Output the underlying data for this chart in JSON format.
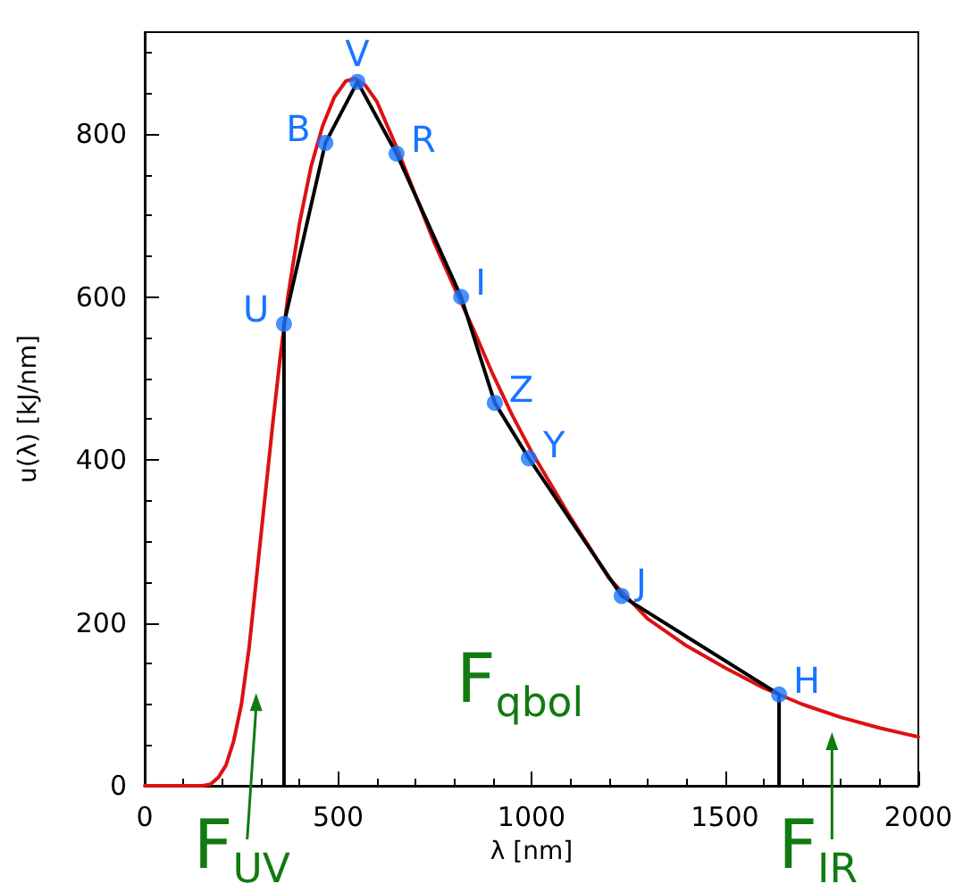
{
  "chart_data": {
    "type": "line",
    "xlabel": "λ [nm]",
    "ylabel": "u(λ) [kJ/nm]",
    "xlim": [
      0,
      2000
    ],
    "xticks": [
      0,
      500,
      1000,
      1500,
      2000
    ],
    "ylim": [
      0,
      925
    ],
    "yticks": [
      0,
      200,
      400,
      600,
      800
    ],
    "series": [
      {
        "color": "#dd1111",
        "marker": "none",
        "x": [
          0,
          100,
          150,
          170,
          190,
          210,
          230,
          250,
          270,
          290,
          310,
          330,
          350,
          370,
          400,
          430,
          460,
          490,
          520,
          545,
          570,
          600,
          650,
          700,
          750,
          800,
          850,
          900,
          950,
          1000,
          1100,
          1200,
          1300,
          1400,
          1500,
          1600,
          1700,
          1800,
          1900,
          2000
        ],
        "values": [
          0,
          0,
          0,
          2,
          10,
          25,
          55,
          100,
          170,
          260,
          350,
          440,
          525,
          600,
          690,
          760,
          810,
          845,
          865,
          868,
          860,
          840,
          785,
          725,
          665,
          612,
          560,
          505,
          455,
          410,
          330,
          255,
          205,
          172,
          145,
          120,
          100,
          84,
          71,
          60
        ]
      },
      {
        "color": "#000000",
        "marker": "none",
        "x": [
          360,
          360,
          467,
          550,
          651,
          818,
          905,
          993,
          1233,
          1640,
          1640
        ],
        "values": [
          0,
          567,
          789,
          864,
          776,
          600,
          470,
          402,
          233,
          112,
          0
        ]
      },
      {
        "type": "scatter",
        "color": "#1a75ff",
        "marker": "circle",
        "x": [
          360,
          467,
          550,
          651,
          818,
          905,
          993,
          1233,
          1640
        ],
        "values": [
          567,
          789,
          864,
          776,
          600,
          470,
          402,
          233,
          112
        ]
      }
    ],
    "annotations": [
      {
        "text": "U",
        "x": 360,
        "y": 567
      },
      {
        "text": "B",
        "x": 467,
        "y": 789
      },
      {
        "text": "V",
        "x": 550,
        "y": 864
      },
      {
        "text": "R",
        "x": 651,
        "y": 776
      },
      {
        "text": "I",
        "x": 818,
        "y": 600
      },
      {
        "text": "Z",
        "x": 905,
        "y": 470
      },
      {
        "text": "Y",
        "x": 993,
        "y": 402
      },
      {
        "text": "J",
        "x": 1233,
        "y": 233
      },
      {
        "text": "H",
        "x": 1640,
        "y": 112
      },
      "F$_{UV}$",
      "F$_{qbol}$",
      "F$_{IR}$"
    ]
  }
}
